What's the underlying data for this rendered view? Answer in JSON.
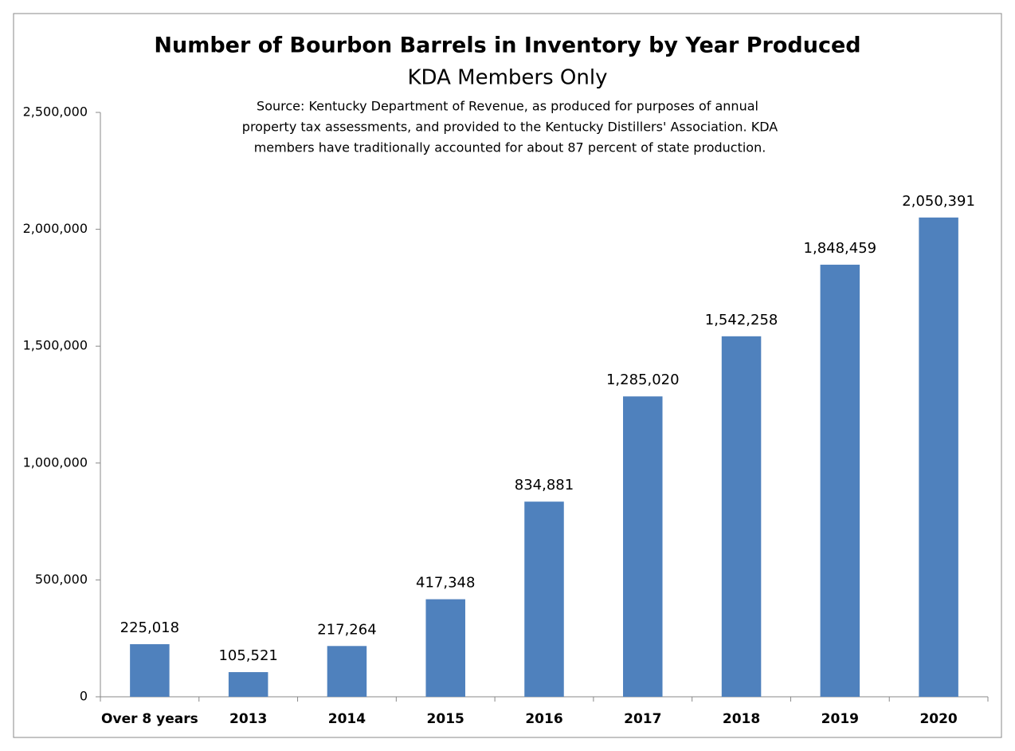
{
  "chart_data": {
    "type": "bar",
    "title": "Number of Bourbon Barrels in Inventory by Year Produced",
    "subtitle": "KDA Members Only",
    "source_lines": [
      "Source: Kentucky Department of Revenue, as produced for purposes of annual",
      "property tax assessments, and provided to the Kentucky Distillers' Association. KDA",
      "members have traditionally accounted for about 87 percent of state production."
    ],
    "categories": [
      "Over 8 years",
      "2013",
      "2014",
      "2015",
      "2016",
      "2017",
      "2018",
      "2019",
      "2020"
    ],
    "values": [
      225018,
      105521,
      217264,
      417348,
      834881,
      1285020,
      1542258,
      1848459,
      2050391
    ],
    "value_labels": [
      "225,018",
      "105,521",
      "217,264",
      "417,348",
      "834,881",
      "1,285,020",
      "1,542,258",
      "1,848,459",
      "2,050,391"
    ],
    "color": "#4f81bd",
    "ylim": [
      0,
      2500000
    ],
    "yticks": [
      0,
      {
        "value": 500000,
        "label": "500,000"
      },
      {
        "value": 1000000,
        "label": "1,000,000"
      },
      {
        "value": 1500000,
        "label": "1,500,000"
      },
      {
        "value": 2000000,
        "label": "2,000,000"
      },
      {
        "value": 2500000,
        "label": "2,500,000"
      }
    ],
    "grid": false
  }
}
